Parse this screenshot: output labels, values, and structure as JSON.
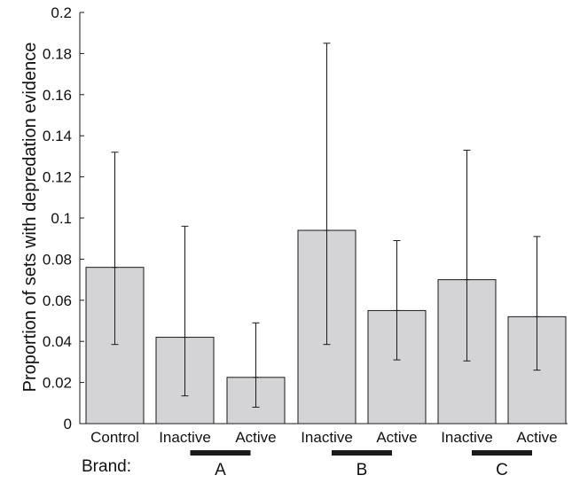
{
  "chart_data": {
    "type": "bar",
    "ylabel": "Proportion of sets with depredation evidence",
    "ylim": [
      0,
      0.2
    ],
    "yticks": [
      0,
      0.02,
      0.04,
      0.06,
      0.08,
      0.1,
      0.12,
      0.14,
      0.16,
      0.18,
      0.2
    ],
    "ytick_labels": [
      "0",
      "0.02",
      "0.04",
      "0.06",
      "0.08",
      "0.1",
      "0.12",
      "0.14",
      "0.16",
      "0.18",
      "0.2"
    ],
    "categories": [
      "Control",
      "Inactive",
      "Active",
      "Inactive",
      "Active",
      "Inactive",
      "Active"
    ],
    "values": [
      0.076,
      0.042,
      0.0225,
      0.094,
      0.055,
      0.07,
      0.052
    ],
    "error_low": [
      0.0385,
      0.0135,
      0.008,
      0.0385,
      0.031,
      0.0305,
      0.026
    ],
    "error_high": [
      0.132,
      0.096,
      0.049,
      0.185,
      0.089,
      0.133,
      0.091
    ],
    "grid": false,
    "brand_prefix": "Brand:",
    "brands": [
      {
        "label": "A",
        "categories": [
          1,
          2
        ]
      },
      {
        "label": "B",
        "categories": [
          3,
          4
        ]
      },
      {
        "label": "C",
        "categories": [
          5,
          6
        ]
      }
    ],
    "colors": {
      "bar_fill": "#d4d4d6",
      "bar_stroke": "#1a1a1a"
    }
  }
}
